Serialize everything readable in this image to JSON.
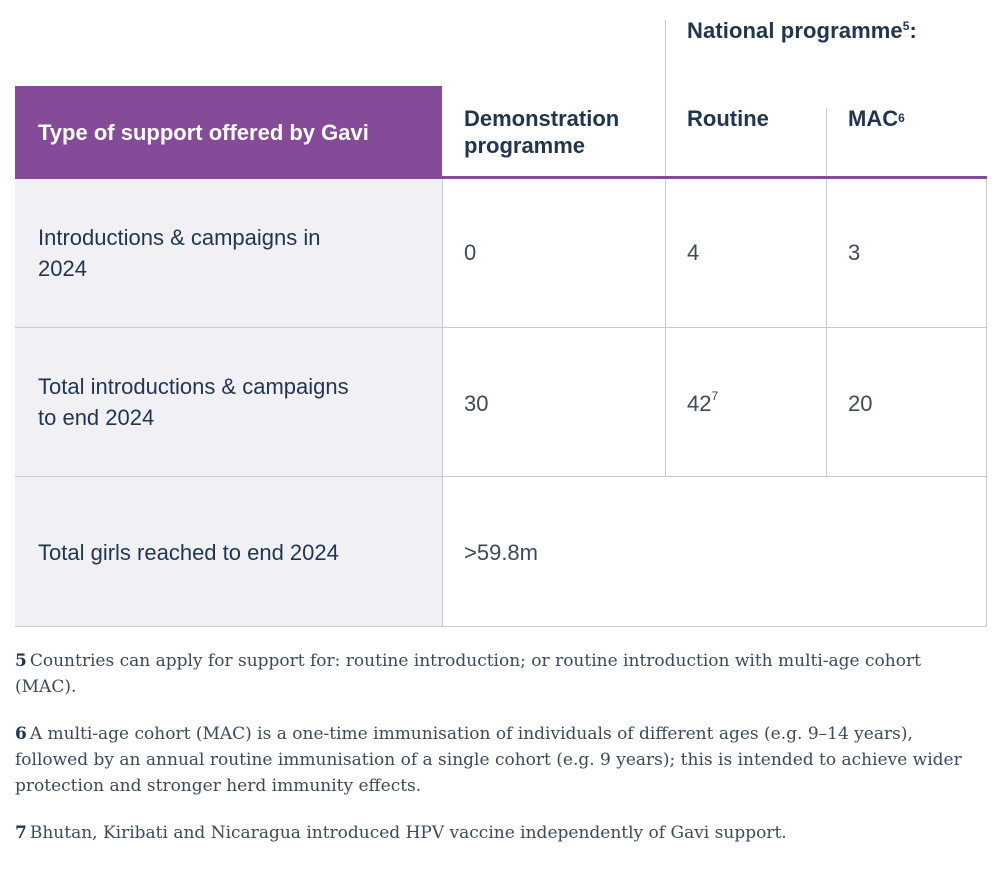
{
  "table": {
    "national_programme_label": "National programme",
    "national_programme_note": "5",
    "national_programme_colon": ":",
    "header_first": "Type of support offered by Gavi",
    "header_demo_line1": "Demonstration",
    "header_demo_line2": "programme",
    "header_routine": "Routine",
    "header_mac": "MAC",
    "header_mac_note": "6",
    "rows": [
      {
        "label_line1": "Introductions & campaigns in",
        "label_line2": "2024",
        "demonstration": "0",
        "routine": "4",
        "mac": "3"
      },
      {
        "label_line1": "Total introductions & campaigns",
        "label_line2": "to end 2024",
        "demonstration": "30",
        "routine": "42",
        "routine_note": "7",
        "mac": "20"
      },
      {
        "label_line1": "Total girls reached to end 2024",
        "value": ">59.8m"
      }
    ]
  },
  "footnotes": [
    {
      "num": "5",
      "text": "Countries can apply for support for: routine introduction; or routine introduction with multi-age cohort (MAC)."
    },
    {
      "num": "6",
      "text": "A multi-age cohort (MAC) is a one-time immunisation of individuals of different ages (e.g. 9–14 years), followed by an annual routine immunisation of a single cohort (e.g. 9 years); this is intended to achieve wider protection and stronger herd immunity effects."
    },
    {
      "num": "7",
      "text": "Bhutan, Kiribati and Nicaragua introduced HPV vaccine independently of Gavi support."
    }
  ],
  "colors": {
    "header_purple": "#854a98",
    "left_column_bg": "#f1f0f5",
    "text_navy": "#1f3550",
    "grid_line": "#c9c9d1"
  }
}
